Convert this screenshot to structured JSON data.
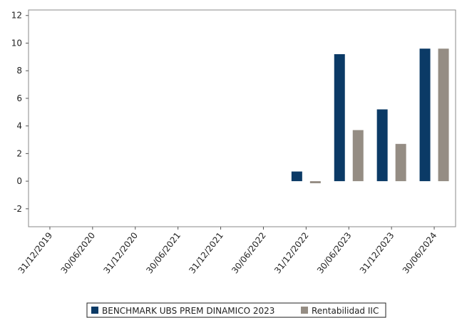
{
  "chart_data": {
    "type": "bar",
    "categories": [
      "31/12/2019",
      "30/06/2020",
      "31/12/2020",
      "30/06/2021",
      "31/12/2021",
      "30/06/2022",
      "31/12/2022",
      "30/06/2023",
      "31/12/2023",
      "30/06/2024"
    ],
    "series": [
      {
        "name": "BENCHMARK UBS PREM DINAMICO 2023",
        "color": "#0b3a66",
        "values": [
          null,
          null,
          null,
          null,
          null,
          null,
          0.7,
          9.2,
          5.2,
          9.6
        ]
      },
      {
        "name": "Rentabilidad IIC",
        "color": "#958d84",
        "values": [
          null,
          null,
          null,
          null,
          null,
          null,
          -0.15,
          3.7,
          2.7,
          9.6
        ]
      }
    ],
    "yticks": [
      -2,
      0,
      2,
      4,
      6,
      8,
      10,
      12
    ],
    "ylim": [
      -3.3,
      12.4
    ],
    "grid": false,
    "legend_position": "bottom"
  }
}
